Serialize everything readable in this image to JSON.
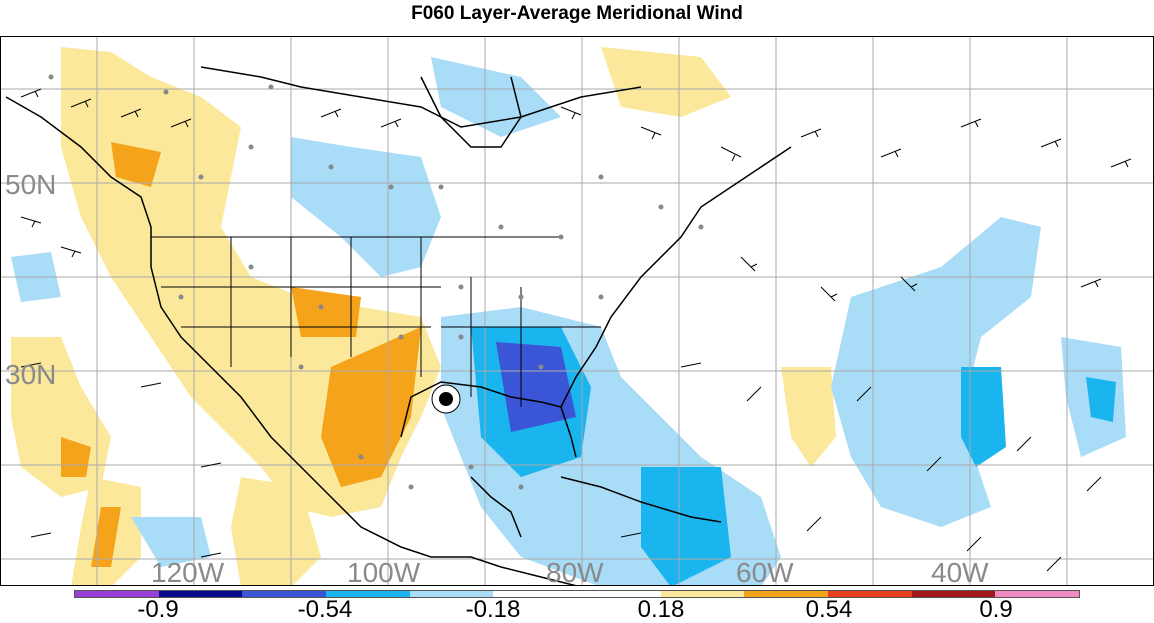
{
  "title": "F060 Layer-Average Meridional Wind",
  "lat_labels": [
    "50N",
    "30N"
  ],
  "lon_labels": [
    "120W",
    "100W",
    "80W",
    "60W",
    "40W"
  ],
  "colorbar": {
    "colors": [
      "#9a3fd6",
      "#0a0a8c",
      "#3a55d6",
      "#1ab4ee",
      "#a8dcf7",
      "#ffffff",
      "#ffffff",
      "#fbe89a",
      "#f5a31a",
      "#e8401a",
      "#a01a1a",
      "#f08ac0"
    ],
    "tick_labels": [
      "-0.9",
      "-0.54",
      "-0.18",
      "0.18",
      "0.54",
      "0.9"
    ]
  },
  "colors": {
    "pos_light": "#fbe89a",
    "pos_mid": "#f5a31a",
    "neg_light": "#a8dcf7",
    "neg_mid": "#1ab4ee",
    "neg_dark": "#3a55d6",
    "grid": "#aaaaaa",
    "coast": "#000000"
  }
}
